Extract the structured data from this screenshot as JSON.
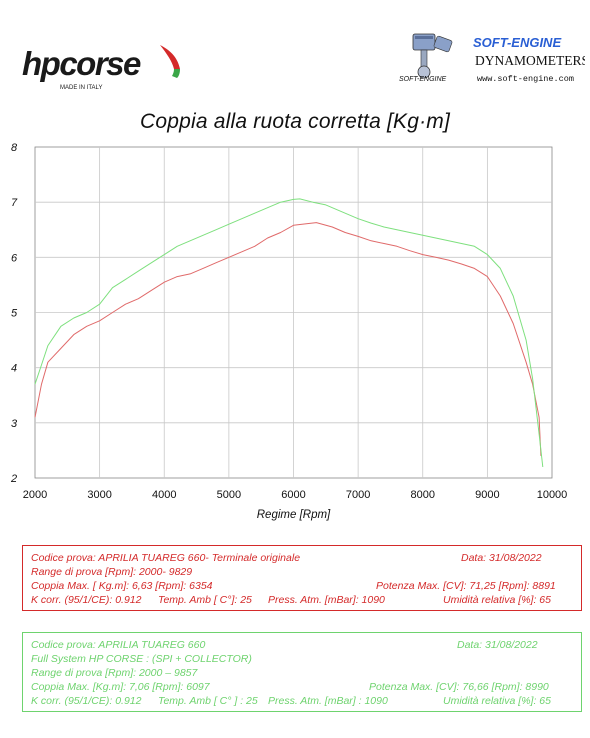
{
  "header": {
    "hp_logo": {
      "brand": "hpcorse",
      "tagline": "MADE IN ITALY",
      "colors": [
        "#1a1a1a",
        "#d42a2a",
        "#3aa648"
      ]
    },
    "se_logo": {
      "brand": "SOFT-ENGINE",
      "subtitle": "DYNAMOMETERS",
      "url": "www.soft-engine.com",
      "wordmark": "SOFT-ENGINE",
      "colors": [
        "#2a5fd4",
        "#111111"
      ]
    }
  },
  "chart_data": {
    "type": "line",
    "title": "Coppia alla ruota corretta [Kg·m]",
    "xlabel": "Regime [Rpm]",
    "ylabel": "",
    "xlim": [
      2000,
      10000
    ],
    "ylim": [
      2,
      8
    ],
    "x_ticks": [
      2000,
      3000,
      4000,
      5000,
      6000,
      7000,
      8000,
      9000,
      10000
    ],
    "y_ticks": [
      2,
      3,
      4,
      5,
      6,
      7,
      8
    ],
    "grid": true,
    "series": [
      {
        "color": "#e06a6a",
        "x": [
          2000,
          2100,
          2200,
          2400,
          2600,
          2800,
          3000,
          3200,
          3400,
          3600,
          3800,
          4000,
          4200,
          4400,
          4600,
          4800,
          5000,
          5200,
          5400,
          5600,
          5800,
          6000,
          6200,
          6354,
          6600,
          6800,
          7000,
          7200,
          7400,
          7600,
          7800,
          8000,
          8200,
          8400,
          8600,
          8800,
          9000,
          9200,
          9400,
          9600,
          9700,
          9800,
          9829
        ],
        "values": [
          3.1,
          3.7,
          4.1,
          4.35,
          4.6,
          4.75,
          4.85,
          5.0,
          5.15,
          5.25,
          5.4,
          5.55,
          5.65,
          5.7,
          5.8,
          5.9,
          6.0,
          6.1,
          6.2,
          6.35,
          6.45,
          6.58,
          6.61,
          6.63,
          6.55,
          6.45,
          6.38,
          6.3,
          6.25,
          6.2,
          6.12,
          6.05,
          6.0,
          5.95,
          5.88,
          5.8,
          5.65,
          5.3,
          4.8,
          4.1,
          3.7,
          3.1,
          2.4
        ]
      },
      {
        "color": "#7ee07e",
        "x": [
          2000,
          2100,
          2200,
          2400,
          2600,
          2800,
          3000,
          3200,
          3400,
          3600,
          3800,
          4000,
          4200,
          4400,
          4600,
          4800,
          5000,
          5200,
          5400,
          5600,
          5800,
          6000,
          6097,
          6300,
          6500,
          6700,
          7000,
          7200,
          7400,
          7600,
          7800,
          8000,
          8200,
          8400,
          8600,
          8800,
          9000,
          9200,
          9400,
          9600,
          9700,
          9800,
          9857
        ],
        "values": [
          3.7,
          4.05,
          4.4,
          4.75,
          4.9,
          5.0,
          5.15,
          5.45,
          5.6,
          5.75,
          5.9,
          6.05,
          6.2,
          6.3,
          6.4,
          6.5,
          6.6,
          6.7,
          6.8,
          6.9,
          7.0,
          7.05,
          7.06,
          7.0,
          6.95,
          6.85,
          6.7,
          6.62,
          6.55,
          6.5,
          6.45,
          6.4,
          6.35,
          6.3,
          6.25,
          6.2,
          6.05,
          5.8,
          5.3,
          4.5,
          3.8,
          2.8,
          2.2
        ]
      }
    ]
  },
  "red_info": {
    "color": "#d42a2a",
    "row1": [
      "Codice prova: APRILIA TUAREG 660- Terminale originale",
      "Data: 31/08/2022"
    ],
    "row2": [
      "Range di prova [Rpm]: 2000- 9829"
    ],
    "row3": [
      "Coppia Max. [ Kg.m]: 6,63 [Rpm]: 6354",
      "Potenza Max. [CV]: 71,25 [Rpm]: 8891"
    ],
    "row4": [
      "K corr. (95/1/CE): 0.912",
      "Temp. Amb [ C°]: 25",
      "Press. Atm. [mBar]: 1090",
      "Umidità relativa [%]: 65"
    ]
  },
  "green_info": {
    "color": "#6ed36e",
    "row1": [
      "Codice prova: APRILIA TUAREG 660",
      "Data: 31/08/2022"
    ],
    "row2": [
      "Full System HP CORSE : (SPI + COLLECTOR)"
    ],
    "row3": [
      "Range di prova [Rpm]: 2000 – 9857"
    ],
    "row4": [
      "Coppia Max. [Kg.m]: 7,06 [Rpm]: 6097",
      "Potenza Max. [CV]: 76,66 [Rpm]: 8990"
    ],
    "row5": [
      "K corr. (95/1/CE): 0.912",
      "Temp. Amb [ C° ] : 25",
      "Press. Atm. [mBar] : 1090",
      "Umidità relativa [%]: 65"
    ]
  }
}
